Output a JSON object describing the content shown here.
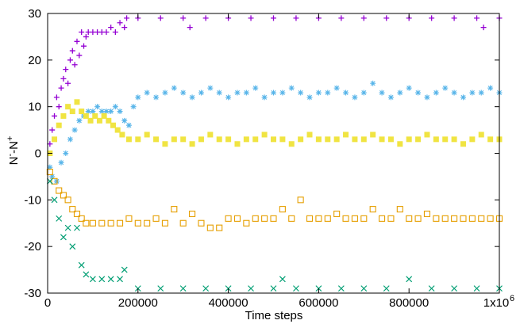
{
  "chart_data": {
    "type": "scatter",
    "xlabel": "Time steps",
    "ylabel_main": "N",
    "ylabel_sup1": "-",
    "ylabel_mid": "-N",
    "ylabel_sup2": "+",
    "xlim": [
      0,
      1000000
    ],
    "ylim": [
      -30,
      30
    ],
    "x_ticks": [
      0,
      200000,
      400000,
      600000,
      800000,
      1000000
    ],
    "x_tick_labels": [
      "0",
      "200000",
      "400000",
      "600000",
      "800000",
      "1x10"
    ],
    "x_last_tick_exponent": "6",
    "y_ticks": [
      -30,
      -20,
      -10,
      0,
      10,
      20,
      30
    ],
    "y_tick_labels": [
      "-30",
      "-20",
      "-10",
      "0",
      "10",
      "20",
      "30"
    ],
    "series": [
      {
        "marker": "plus",
        "color": "#9400d3",
        "points": [
          [
            5000,
            2
          ],
          [
            10000,
            5
          ],
          [
            15000,
            8
          ],
          [
            20000,
            12
          ],
          [
            25000,
            10
          ],
          [
            30000,
            14
          ],
          [
            35000,
            16
          ],
          [
            40000,
            18
          ],
          [
            45000,
            15
          ],
          [
            50000,
            20
          ],
          [
            55000,
            22
          ],
          [
            60000,
            19
          ],
          [
            65000,
            24
          ],
          [
            70000,
            21
          ],
          [
            75000,
            26
          ],
          [
            80000,
            23
          ],
          [
            85000,
            25
          ],
          [
            90000,
            26
          ],
          [
            100000,
            26
          ],
          [
            110000,
            26
          ],
          [
            120000,
            26
          ],
          [
            130000,
            26
          ],
          [
            140000,
            27
          ],
          [
            150000,
            26
          ],
          [
            160000,
            28
          ],
          [
            170000,
            27
          ],
          [
            175000,
            29
          ],
          [
            200000,
            29
          ],
          [
            250000,
            29
          ],
          [
            300000,
            29
          ],
          [
            315000,
            27
          ],
          [
            350000,
            29
          ],
          [
            400000,
            29
          ],
          [
            450000,
            29
          ],
          [
            500000,
            29
          ],
          [
            550000,
            29
          ],
          [
            600000,
            29
          ],
          [
            650000,
            29
          ],
          [
            700000,
            29
          ],
          [
            750000,
            29
          ],
          [
            800000,
            29
          ],
          [
            850000,
            29
          ],
          [
            900000,
            29
          ],
          [
            950000,
            29
          ],
          [
            965000,
            27
          ],
          [
            1000000,
            29
          ]
        ]
      },
      {
        "marker": "star",
        "color": "#56b4e9",
        "points": [
          [
            5000,
            -3
          ],
          [
            10000,
            -5
          ],
          [
            20000,
            -6
          ],
          [
            30000,
            -2
          ],
          [
            40000,
            0
          ],
          [
            50000,
            3
          ],
          [
            60000,
            5
          ],
          [
            70000,
            7
          ],
          [
            80000,
            8
          ],
          [
            90000,
            9
          ],
          [
            100000,
            9
          ],
          [
            110000,
            10
          ],
          [
            120000,
            9
          ],
          [
            130000,
            9
          ],
          [
            140000,
            9
          ],
          [
            150000,
            10
          ],
          [
            160000,
            9
          ],
          [
            170000,
            7
          ],
          [
            180000,
            6
          ],
          [
            190000,
            10
          ],
          [
            200000,
            12
          ],
          [
            220000,
            13
          ],
          [
            240000,
            12
          ],
          [
            260000,
            13
          ],
          [
            280000,
            14
          ],
          [
            300000,
            13
          ],
          [
            320000,
            12
          ],
          [
            340000,
            13
          ],
          [
            360000,
            14
          ],
          [
            380000,
            13
          ],
          [
            400000,
            12
          ],
          [
            420000,
            13
          ],
          [
            440000,
            13
          ],
          [
            460000,
            14
          ],
          [
            480000,
            12
          ],
          [
            500000,
            13
          ],
          [
            520000,
            13
          ],
          [
            540000,
            14
          ],
          [
            560000,
            13
          ],
          [
            580000,
            12
          ],
          [
            600000,
            13
          ],
          [
            620000,
            13
          ],
          [
            640000,
            14
          ],
          [
            660000,
            13
          ],
          [
            680000,
            12
          ],
          [
            700000,
            13
          ],
          [
            720000,
            15
          ],
          [
            740000,
            13
          ],
          [
            760000,
            12
          ],
          [
            780000,
            13
          ],
          [
            800000,
            14
          ],
          [
            820000,
            13
          ],
          [
            840000,
            12
          ],
          [
            860000,
            13
          ],
          [
            880000,
            14
          ],
          [
            900000,
            13
          ],
          [
            920000,
            12
          ],
          [
            940000,
            13
          ],
          [
            960000,
            13
          ],
          [
            980000,
            14
          ],
          [
            1000000,
            13
          ]
        ]
      },
      {
        "marker": "filled-square",
        "color": "#f0e442",
        "points": [
          [
            5000,
            0
          ],
          [
            15000,
            3
          ],
          [
            25000,
            6
          ],
          [
            35000,
            8
          ],
          [
            45000,
            10
          ],
          [
            55000,
            9
          ],
          [
            65000,
            11
          ],
          [
            75000,
            9
          ],
          [
            85000,
            8
          ],
          [
            95000,
            7
          ],
          [
            105000,
            8
          ],
          [
            115000,
            7
          ],
          [
            125000,
            8
          ],
          [
            135000,
            7
          ],
          [
            145000,
            6
          ],
          [
            155000,
            5
          ],
          [
            165000,
            4
          ],
          [
            180000,
            3
          ],
          [
            200000,
            3
          ],
          [
            220000,
            4
          ],
          [
            240000,
            3
          ],
          [
            260000,
            2
          ],
          [
            280000,
            3
          ],
          [
            300000,
            3
          ],
          [
            320000,
            2
          ],
          [
            340000,
            3
          ],
          [
            360000,
            4
          ],
          [
            380000,
            3
          ],
          [
            400000,
            3
          ],
          [
            420000,
            2
          ],
          [
            440000,
            3
          ],
          [
            460000,
            3
          ],
          [
            480000,
            4
          ],
          [
            500000,
            3
          ],
          [
            520000,
            3
          ],
          [
            540000,
            2
          ],
          [
            560000,
            3
          ],
          [
            580000,
            4
          ],
          [
            600000,
            3
          ],
          [
            620000,
            3
          ],
          [
            640000,
            3
          ],
          [
            660000,
            4
          ],
          [
            680000,
            3
          ],
          [
            700000,
            3
          ],
          [
            720000,
            4
          ],
          [
            740000,
            3
          ],
          [
            760000,
            3
          ],
          [
            780000,
            2
          ],
          [
            800000,
            3
          ],
          [
            820000,
            3
          ],
          [
            840000,
            4
          ],
          [
            860000,
            3
          ],
          [
            880000,
            3
          ],
          [
            900000,
            3
          ],
          [
            920000,
            2
          ],
          [
            940000,
            3
          ],
          [
            960000,
            4
          ],
          [
            980000,
            3
          ],
          [
            1000000,
            3
          ]
        ]
      },
      {
        "marker": "open-square",
        "color": "#e69f00",
        "points": [
          [
            5000,
            -4
          ],
          [
            15000,
            -6
          ],
          [
            25000,
            -8
          ],
          [
            35000,
            -9
          ],
          [
            45000,
            -10
          ],
          [
            55000,
            -12
          ],
          [
            65000,
            -13
          ],
          [
            75000,
            -14
          ],
          [
            85000,
            -15
          ],
          [
            100000,
            -15
          ],
          [
            120000,
            -15
          ],
          [
            140000,
            -15
          ],
          [
            160000,
            -15
          ],
          [
            180000,
            -14
          ],
          [
            200000,
            -15
          ],
          [
            220000,
            -15
          ],
          [
            240000,
            -14
          ],
          [
            260000,
            -15
          ],
          [
            280000,
            -12
          ],
          [
            300000,
            -15
          ],
          [
            320000,
            -13
          ],
          [
            340000,
            -15
          ],
          [
            360000,
            -16
          ],
          [
            380000,
            -16
          ],
          [
            400000,
            -14
          ],
          [
            420000,
            -14
          ],
          [
            440000,
            -15
          ],
          [
            460000,
            -14
          ],
          [
            480000,
            -14
          ],
          [
            500000,
            -14
          ],
          [
            520000,
            -12
          ],
          [
            540000,
            -14
          ],
          [
            560000,
            -10
          ],
          [
            580000,
            -14
          ],
          [
            600000,
            -14
          ],
          [
            620000,
            -14
          ],
          [
            640000,
            -13
          ],
          [
            660000,
            -14
          ],
          [
            680000,
            -14
          ],
          [
            700000,
            -14
          ],
          [
            720000,
            -12
          ],
          [
            740000,
            -14
          ],
          [
            760000,
            -14
          ],
          [
            780000,
            -12
          ],
          [
            800000,
            -14
          ],
          [
            820000,
            -14
          ],
          [
            840000,
            -13
          ],
          [
            860000,
            -14
          ],
          [
            880000,
            -14
          ],
          [
            900000,
            -14
          ],
          [
            920000,
            -14
          ],
          [
            940000,
            -14
          ],
          [
            960000,
            -14
          ],
          [
            980000,
            -14
          ],
          [
            1000000,
            -14
          ]
        ]
      },
      {
        "marker": "cross",
        "color": "#009e73",
        "points": [
          [
            5000,
            -6
          ],
          [
            15000,
            -10
          ],
          [
            25000,
            -14
          ],
          [
            35000,
            -18
          ],
          [
            45000,
            -16
          ],
          [
            55000,
            -20
          ],
          [
            65000,
            -16
          ],
          [
            75000,
            -24
          ],
          [
            85000,
            -26
          ],
          [
            100000,
            -27
          ],
          [
            120000,
            -27
          ],
          [
            140000,
            -27
          ],
          [
            160000,
            -27
          ],
          [
            170000,
            -25
          ],
          [
            200000,
            -29
          ],
          [
            250000,
            -29
          ],
          [
            300000,
            -29
          ],
          [
            350000,
            -29
          ],
          [
            400000,
            -29
          ],
          [
            450000,
            -29
          ],
          [
            500000,
            -29
          ],
          [
            520000,
            -27
          ],
          [
            550000,
            -29
          ],
          [
            600000,
            -29
          ],
          [
            650000,
            -29
          ],
          [
            700000,
            -29
          ],
          [
            750000,
            -29
          ],
          [
            800000,
            -27
          ],
          [
            850000,
            -29
          ],
          [
            900000,
            -29
          ],
          [
            950000,
            -29
          ],
          [
            1000000,
            -29
          ]
        ]
      }
    ]
  }
}
